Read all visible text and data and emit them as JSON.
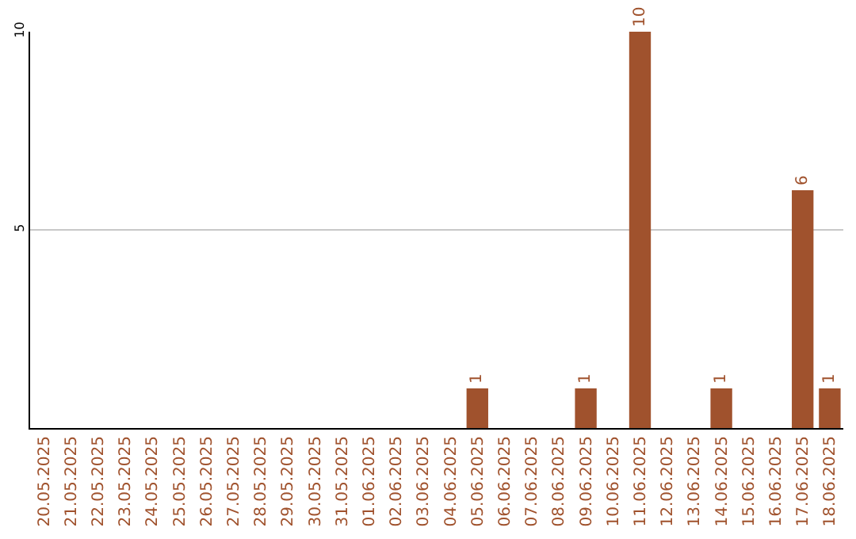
{
  "chart_data": {
    "type": "bar",
    "categories": [
      "20.05.2025",
      "21.05.2025",
      "22.05.2025",
      "23.05.2025",
      "24.05.2025",
      "25.05.2025",
      "26.05.2025",
      "27.05.2025",
      "28.05.2025",
      "29.05.2025",
      "30.05.2025",
      "31.05.2025",
      "01.06.2025",
      "02.06.2025",
      "03.06.2025",
      "04.06.2025",
      "05.06.2025",
      "06.06.2025",
      "07.06.2025",
      "08.06.2025",
      "09.06.2025",
      "10.06.2025",
      "11.06.2025",
      "12.06.2025",
      "13.06.2025",
      "14.06.2025",
      "15.06.2025",
      "16.06.2025",
      "17.06.2025",
      "18.06.2025"
    ],
    "values": [
      0,
      0,
      0,
      0,
      0,
      0,
      0,
      0,
      0,
      0,
      0,
      0,
      0,
      0,
      0,
      0,
      1,
      0,
      0,
      0,
      1,
      0,
      10,
      0,
      0,
      1,
      0,
      0,
      6,
      1
    ],
    "value_labels": [
      null,
      null,
      null,
      null,
      null,
      null,
      null,
      null,
      null,
      null,
      null,
      null,
      null,
      null,
      null,
      null,
      "1",
      null,
      null,
      null,
      "1",
      null,
      "10",
      null,
      null,
      "1",
      null,
      null,
      "6",
      "1"
    ],
    "color": "#a0522d",
    "ylim": [
      0,
      10
    ],
    "yticks": [
      5,
      10
    ],
    "grid": "y"
  }
}
